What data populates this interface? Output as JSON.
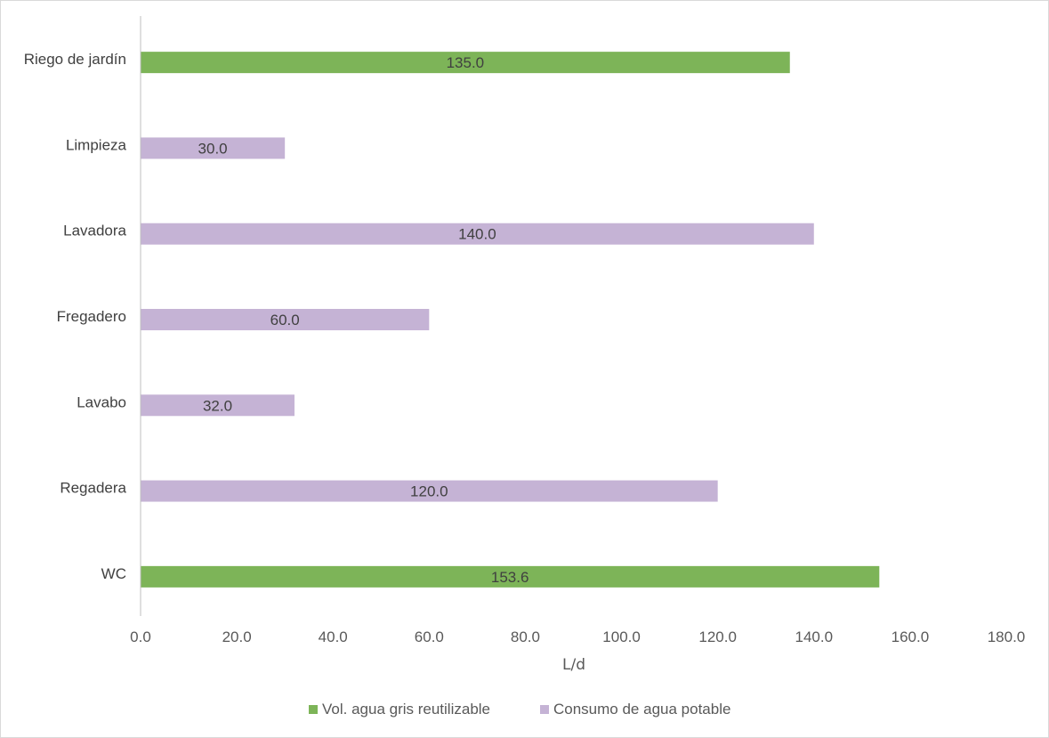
{
  "chart_data": {
    "type": "bar",
    "orientation": "horizontal",
    "categories": [
      "Riego de jardín",
      "Limpieza",
      "Lavadora",
      "Fregadero",
      "Lavabo",
      "Regadera",
      "WC"
    ],
    "series": [
      {
        "name": "Vol. agua gris reutilizable",
        "color": "#7db458",
        "values": [
          135.0,
          null,
          null,
          null,
          null,
          null,
          153.6
        ]
      },
      {
        "name": "Consumo de agua potable",
        "color": "#c5b3d5",
        "values": [
          null,
          30.0,
          140.0,
          60.0,
          32.0,
          120.0,
          null
        ]
      }
    ],
    "data_labels": [
      "135.0",
      "30.0",
      "140.0",
      "60.0",
      "32.0",
      "120.0",
      "153.6"
    ],
    "xlabel": "L/d",
    "ylabel": "",
    "xlim": [
      0,
      180
    ],
    "xticks": [
      "0.0",
      "20.0",
      "40.0",
      "60.0",
      "80.0",
      "100.0",
      "120.0",
      "140.0",
      "160.0",
      "180.0"
    ],
    "grid": false,
    "legend_position": "bottom"
  }
}
